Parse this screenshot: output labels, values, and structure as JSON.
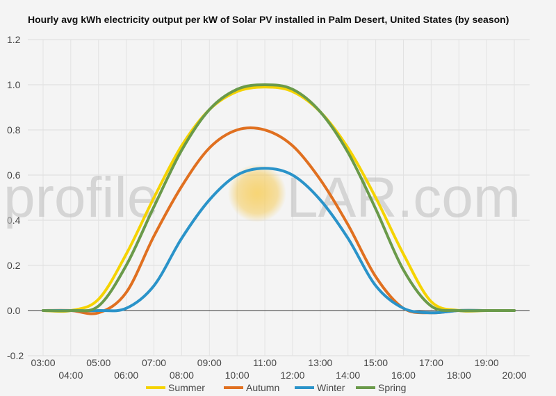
{
  "chart_data": {
    "type": "line",
    "title": "Hourly avg kWh electricity output per kW of Solar PV installed in Palm Desert, United States (by season)",
    "xlabel": "",
    "ylabel": "",
    "x": [
      "03:00",
      "04:00",
      "05:00",
      "06:00",
      "07:00",
      "08:00",
      "09:00",
      "10:00",
      "11:00",
      "12:00",
      "13:00",
      "14:00",
      "15:00",
      "16:00",
      "17:00",
      "18:00",
      "19:00",
      "20:00"
    ],
    "ylim": [
      -0.2,
      1.2
    ],
    "yticks": [
      -0.2,
      0.0,
      0.2,
      0.4,
      0.6,
      0.8,
      1.0,
      1.2
    ],
    "ytick_labels": [
      "-0.2",
      "0.0",
      "0.2",
      "0.4",
      "0.6",
      "0.8",
      "1.0",
      "1.2"
    ],
    "grid": true,
    "legend_position": "bottom",
    "series": [
      {
        "name": "Summer",
        "color": "#f5d300",
        "values": [
          0,
          0,
          0.05,
          0.25,
          0.5,
          0.73,
          0.89,
          0.97,
          0.99,
          0.97,
          0.88,
          0.72,
          0.5,
          0.25,
          0.04,
          0,
          0,
          0
        ]
      },
      {
        "name": "Autumn",
        "color": "#e07020",
        "values": [
          0,
          0,
          -0.01,
          0.08,
          0.33,
          0.55,
          0.72,
          0.8,
          0.8,
          0.73,
          0.58,
          0.38,
          0.15,
          0.01,
          -0.01,
          0,
          0,
          0
        ]
      },
      {
        "name": "Winter",
        "color": "#2a93c9",
        "values": [
          0,
          0,
          0,
          0.01,
          0.11,
          0.32,
          0.49,
          0.6,
          0.63,
          0.6,
          0.49,
          0.32,
          0.11,
          0.01,
          -0.01,
          0,
          0,
          0
        ]
      },
      {
        "name": "Spring",
        "color": "#6a9a4a",
        "values": [
          0,
          0,
          0.02,
          0.2,
          0.46,
          0.71,
          0.89,
          0.98,
          1.0,
          0.98,
          0.88,
          0.7,
          0.45,
          0.18,
          0.02,
          0,
          0,
          0
        ]
      }
    ]
  },
  "watermark": {
    "text_left": "profile",
    "text_right": "LAR.com",
    "sun_color": "#f6c33a"
  }
}
